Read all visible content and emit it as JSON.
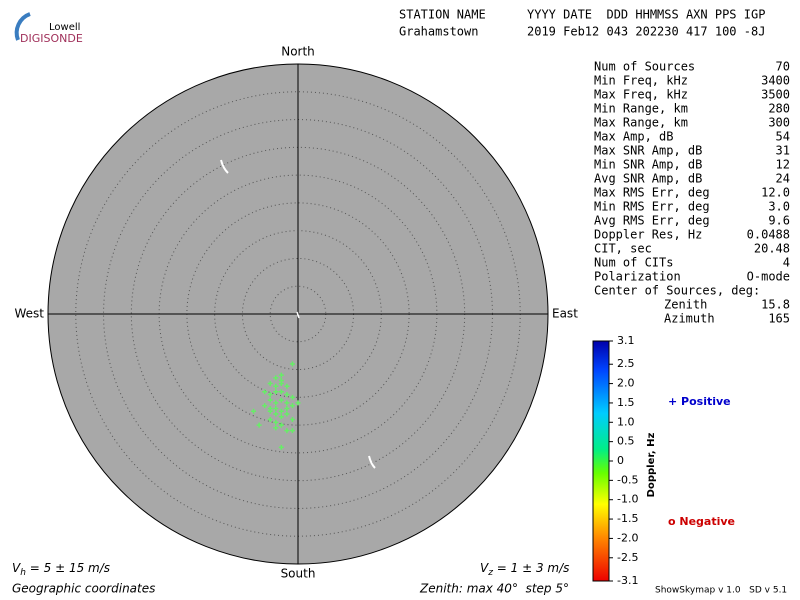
{
  "logo": {
    "top": "Lowell",
    "bottom": "DIGISONDE"
  },
  "header": {
    "labels": [
      "STATION NAME",
      "YYYY DATE  DDD HHMMSS AXN PPS IGP"
    ],
    "values": [
      "Grahamstown",
      "2019 Feb12 043 202230 417 100 -8J"
    ]
  },
  "stats": {
    "rows": [
      [
        "Num of Sources",
        70
      ],
      [
        "Min Freq, kHz",
        3400
      ],
      [
        "Max Freq, kHz",
        3500
      ],
      [
        "Min Range, km",
        280
      ],
      [
        "Max Range, km",
        300
      ],
      [
        "Max Amp, dB",
        54
      ],
      [
        "Max SNR Amp, dB",
        31
      ],
      [
        "Min SNR Amp, dB",
        12
      ],
      [
        "Avg SNR Amp, dB",
        24
      ],
      [
        "Max RMS Err, deg",
        "12.0"
      ],
      [
        "Min RMS Err, deg",
        "3.0"
      ],
      [
        "Avg RMS Err, deg",
        "9.6"
      ],
      [
        "Doppler Res, Hz",
        "0.0488"
      ],
      [
        "CIT, sec",
        "20.48"
      ],
      [
        "Num of CITs",
        4
      ],
      [
        "Polarization",
        "O-mode"
      ]
    ],
    "center_title": "Center of Sources, deg:",
    "center_rows": [
      [
        "Zenith",
        "15.8"
      ],
      [
        "Azimuth",
        165
      ]
    ]
  },
  "chart_data": {
    "type": "skymap",
    "directions": {
      "north": "North",
      "south": "South",
      "west": "West",
      "east": "East"
    },
    "rlim": [
      0,
      45
    ],
    "rticks": [
      5,
      10,
      15,
      20,
      25,
      30,
      35,
      40
    ],
    "color": "#66ee66",
    "x": [
      -3,
      -4,
      -5,
      -3,
      -2,
      -6,
      -5,
      -4,
      -3,
      -2,
      -1,
      -5,
      -4,
      -3,
      -2,
      -6,
      -5,
      -4,
      -3,
      -2,
      -1,
      -4,
      -3,
      -2,
      -5,
      -4,
      -3,
      -7,
      -4,
      -3,
      -2,
      -1,
      0,
      -1,
      -3,
      -4,
      -5,
      -8,
      -1,
      -3
    ],
    "y": [
      -11,
      -11.5,
      -12.5,
      -12,
      -13,
      -14,
      -14.5,
      -14,
      -14,
      -14.5,
      -15,
      -15.5,
      -16,
      -15.5,
      -16,
      -16.5,
      -17,
      -17,
      -17.5,
      -17,
      -16.5,
      -18,
      -18.5,
      -18,
      -19,
      -19.5,
      -20,
      -20,
      -20.5,
      -20,
      -21,
      -19,
      -16,
      -21,
      -12.5,
      -13,
      -17.5,
      -17.5,
      -9,
      -24
    ]
  },
  "colorbar": {
    "label": "Doppler, Hz",
    "clim": [
      -3.1,
      3.1
    ],
    "ticks": [
      3.1,
      2.5,
      {
        "value": 2,
        "label": "2.0"
      },
      1.5,
      {
        "value": 1,
        "label": "1.0"
      },
      0.5,
      0,
      -0.5,
      {
        "value": -1,
        "label": "-1.0"
      },
      -1.5,
      {
        "value": -2,
        "label": "-2.0"
      },
      -2.5,
      -3.1
    ]
  },
  "legend": {
    "positive": "+ Positive",
    "negative": "o Negative"
  },
  "footer": {
    "vh": {
      "symbol": "V",
      "sub": "h",
      "text": " = 5 ± 15 m/s"
    },
    "vz": {
      "symbol": "V",
      "sub": "z",
      "text": " = 1 ± 3 m/s"
    },
    "coords": "Geographic coordinates",
    "zenith": "Zenith: max 40°  step 5°",
    "version": "ShowSkymap v 1.0   SD v 5.1"
  }
}
